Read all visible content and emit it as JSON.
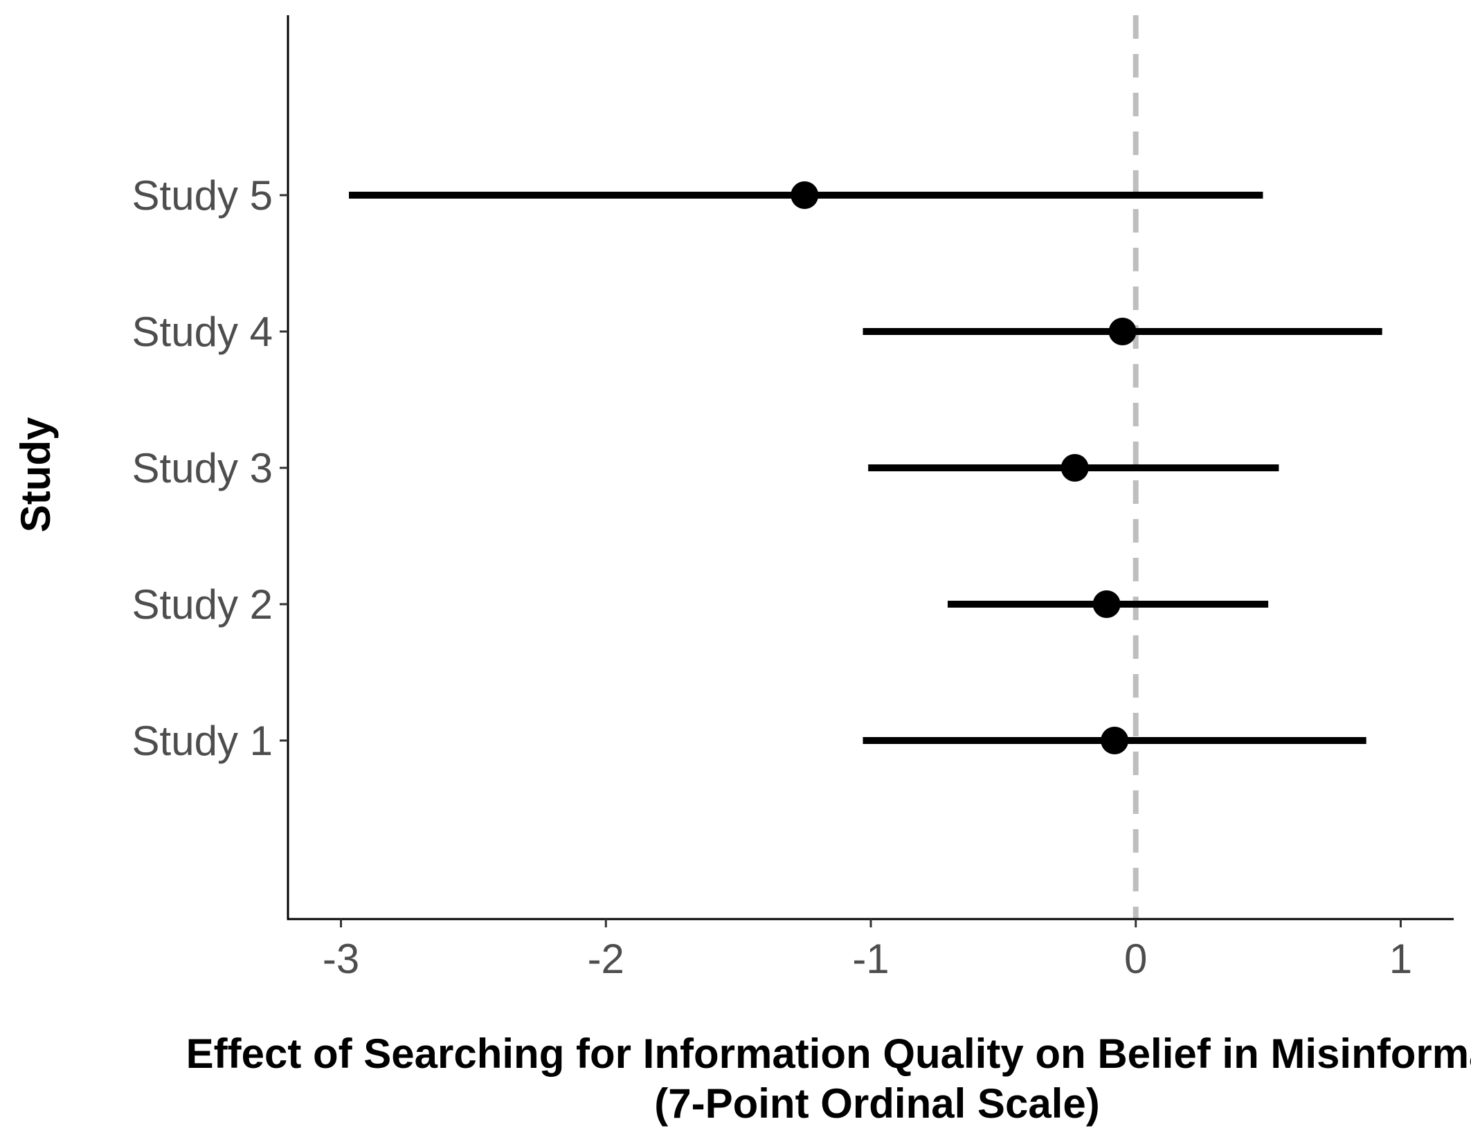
{
  "chart_data": {
    "type": "forest",
    "xlabel_lines": [
      "Effect of Searching for Information Quality on Belief in Misinformation",
      "(7-Point Ordinal Scale)"
    ],
    "ylabel": "Study",
    "xlim": [
      -3.2,
      1.2
    ],
    "xticks": [
      -3,
      -2,
      -1,
      0,
      1
    ],
    "xtick_labels": [
      "-3",
      "-2",
      "-1",
      "0",
      "1"
    ],
    "reference_line": {
      "x": 0,
      "style": "dashed",
      "color": "#bebebe"
    },
    "grid": false,
    "legend": "none",
    "point_color": "#000000",
    "studies": [
      {
        "label": "Study 5",
        "estimate": -1.25,
        "lower": -2.97,
        "upper": 0.48
      },
      {
        "label": "Study 4",
        "estimate": -0.05,
        "lower": -1.03,
        "upper": 0.93
      },
      {
        "label": "Study 3",
        "estimate": -0.23,
        "lower": -1.01,
        "upper": 0.54
      },
      {
        "label": "Study 2",
        "estimate": -0.11,
        "lower": -0.71,
        "upper": 0.5
      },
      {
        "label": "Study 1",
        "estimate": -0.08,
        "lower": -1.03,
        "upper": 0.87
      }
    ]
  }
}
